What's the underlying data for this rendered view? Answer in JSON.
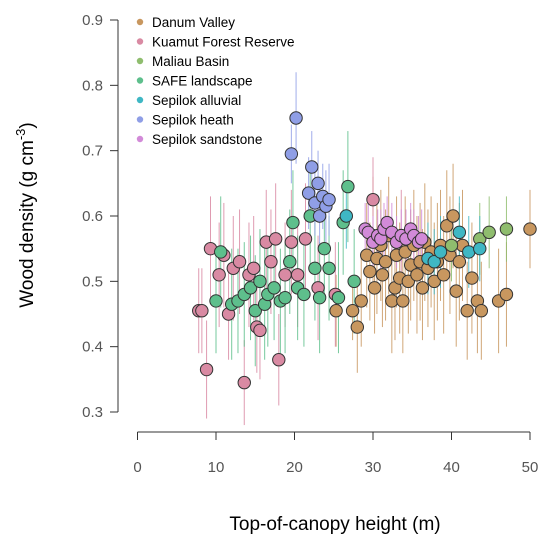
{
  "chart_data": {
    "type": "scatter",
    "title": "",
    "xlabel": "Top-of-canopy height (m)",
    "ylabel_main": "Wood density (g cm",
    "ylabel_sup": "-3",
    "ylabel_close": ")",
    "xlim": [
      0,
      50
    ],
    "ylim": [
      0.3,
      0.9
    ],
    "xticks": [
      0,
      10,
      20,
      30,
      40,
      50
    ],
    "yticks": [
      0.3,
      0.4,
      0.5,
      0.6,
      0.7,
      0.8,
      0.9
    ],
    "grid": false,
    "legend_position": "top-left",
    "series": [
      {
        "name": "Danum Valley",
        "color": "#c8975f",
        "points": [
          [
            25.3,
            0.455,
            0.4,
            0.51
          ],
          [
            27.4,
            0.455,
            0.41,
            0.5
          ],
          [
            28.0,
            0.43,
            0.36,
            0.5
          ],
          [
            28.5,
            0.47,
            0.4,
            0.54
          ],
          [
            29.2,
            0.54,
            0.46,
            0.62
          ],
          [
            29.6,
            0.515,
            0.44,
            0.59
          ],
          [
            30.0,
            0.57,
            0.49,
            0.66
          ],
          [
            30.2,
            0.49,
            0.42,
            0.56
          ],
          [
            30.5,
            0.535,
            0.45,
            0.62
          ],
          [
            31.0,
            0.555,
            0.47,
            0.64
          ],
          [
            31.2,
            0.51,
            0.43,
            0.59
          ],
          [
            31.6,
            0.53,
            0.44,
            0.61
          ],
          [
            32.0,
            0.57,
            0.48,
            0.66
          ],
          [
            32.4,
            0.47,
            0.39,
            0.55
          ],
          [
            32.8,
            0.49,
            0.41,
            0.57
          ],
          [
            33.0,
            0.54,
            0.46,
            0.63
          ],
          [
            33.4,
            0.505,
            0.42,
            0.59
          ],
          [
            33.8,
            0.47,
            0.39,
            0.56
          ],
          [
            34.1,
            0.545,
            0.46,
            0.63
          ],
          [
            34.5,
            0.5,
            0.42,
            0.58
          ],
          [
            34.8,
            0.525,
            0.44,
            0.61
          ],
          [
            35.2,
            0.555,
            0.47,
            0.64
          ],
          [
            35.6,
            0.51,
            0.42,
            0.6
          ],
          [
            36.0,
            0.53,
            0.44,
            0.62
          ],
          [
            36.3,
            0.49,
            0.41,
            0.58
          ],
          [
            36.6,
            0.56,
            0.47,
            0.65
          ],
          [
            37.0,
            0.52,
            0.43,
            0.61
          ],
          [
            37.4,
            0.545,
            0.46,
            0.63
          ],
          [
            37.8,
            0.5,
            0.41,
            0.59
          ],
          [
            38.2,
            0.53,
            0.44,
            0.62
          ],
          [
            38.6,
            0.555,
            0.47,
            0.64
          ],
          [
            39.0,
            0.51,
            0.42,
            0.6
          ],
          [
            39.4,
            0.585,
            0.5,
            0.67
          ],
          [
            39.8,
            0.54,
            0.45,
            0.63
          ],
          [
            40.2,
            0.6,
            0.52,
            0.68
          ],
          [
            40.6,
            0.485,
            0.4,
            0.57
          ],
          [
            41.0,
            0.53,
            0.44,
            0.62
          ],
          [
            41.4,
            0.555,
            0.47,
            0.64
          ],
          [
            42.0,
            0.455,
            0.38,
            0.53
          ],
          [
            42.6,
            0.505,
            0.42,
            0.59
          ],
          [
            43.3,
            0.47,
            0.39,
            0.55
          ],
          [
            43.8,
            0.455,
            0.38,
            0.53
          ],
          [
            46.0,
            0.47,
            0.39,
            0.55
          ],
          [
            47.0,
            0.48,
            0.4,
            0.56
          ],
          [
            50.0,
            0.58,
            0.52,
            0.64
          ]
        ]
      },
      {
        "name": "Kuamut Forest Reserve",
        "color": "#d98aa3",
        "points": [
          [
            7.8,
            0.455,
            0.39,
            0.52
          ],
          [
            8.2,
            0.455,
            0.39,
            0.52
          ],
          [
            8.8,
            0.365,
            0.29,
            0.44
          ],
          [
            9.3,
            0.55,
            0.47,
            0.63
          ],
          [
            10.4,
            0.51,
            0.43,
            0.59
          ],
          [
            11.0,
            0.54,
            0.46,
            0.62
          ],
          [
            11.6,
            0.45,
            0.38,
            0.52
          ],
          [
            12.2,
            0.52,
            0.44,
            0.6
          ],
          [
            13.0,
            0.53,
            0.45,
            0.61
          ],
          [
            13.6,
            0.345,
            0.28,
            0.41
          ],
          [
            14.2,
            0.51,
            0.43,
            0.59
          ],
          [
            14.8,
            0.52,
            0.44,
            0.6
          ],
          [
            15.2,
            0.43,
            0.36,
            0.5
          ],
          [
            15.6,
            0.425,
            0.35,
            0.5
          ],
          [
            16.4,
            0.56,
            0.48,
            0.64
          ],
          [
            17.0,
            0.53,
            0.45,
            0.61
          ],
          [
            17.6,
            0.565,
            0.48,
            0.65
          ],
          [
            18.0,
            0.38,
            0.31,
            0.45
          ],
          [
            18.8,
            0.51,
            0.43,
            0.59
          ],
          [
            19.6,
            0.56,
            0.48,
            0.64
          ],
          [
            20.4,
            0.51,
            0.43,
            0.59
          ],
          [
            21.4,
            0.565,
            0.48,
            0.65
          ],
          [
            23.0,
            0.49,
            0.41,
            0.57
          ],
          [
            25.2,
            0.48,
            0.4,
            0.56
          ],
          [
            30.0,
            0.625,
            0.56,
            0.69
          ],
          [
            33.6,
            0.57,
            0.5,
            0.64
          ]
        ]
      },
      {
        "name": "Maliau Basin",
        "color": "#8fbd6e",
        "points": [
          [
            40.0,
            0.555,
            0.5,
            0.61
          ],
          [
            43.6,
            0.565,
            0.51,
            0.62
          ],
          [
            44.8,
            0.575,
            0.52,
            0.63
          ],
          [
            47.0,
            0.58,
            0.53,
            0.63
          ]
        ]
      },
      {
        "name": "SAFE landscape",
        "color": "#5ebf8c",
        "points": [
          [
            10.0,
            0.47,
            0.39,
            0.55
          ],
          [
            10.6,
            0.545,
            0.46,
            0.63
          ],
          [
            12.0,
            0.465,
            0.38,
            0.55
          ],
          [
            12.8,
            0.47,
            0.39,
            0.55
          ],
          [
            13.6,
            0.48,
            0.4,
            0.56
          ],
          [
            14.4,
            0.49,
            0.41,
            0.57
          ],
          [
            15.0,
            0.455,
            0.37,
            0.54
          ],
          [
            15.6,
            0.5,
            0.42,
            0.58
          ],
          [
            16.2,
            0.465,
            0.38,
            0.55
          ],
          [
            16.6,
            0.48,
            0.4,
            0.56
          ],
          [
            17.4,
            0.49,
            0.41,
            0.57
          ],
          [
            18.2,
            0.47,
            0.39,
            0.55
          ],
          [
            18.8,
            0.475,
            0.39,
            0.56
          ],
          [
            19.4,
            0.53,
            0.45,
            0.61
          ],
          [
            19.8,
            0.59,
            0.51,
            0.67
          ],
          [
            20.4,
            0.49,
            0.41,
            0.57
          ],
          [
            21.2,
            0.48,
            0.4,
            0.56
          ],
          [
            22.0,
            0.6,
            0.52,
            0.68
          ],
          [
            22.6,
            0.52,
            0.44,
            0.6
          ],
          [
            23.2,
            0.475,
            0.39,
            0.56
          ],
          [
            23.8,
            0.55,
            0.47,
            0.63
          ],
          [
            24.4,
            0.52,
            0.44,
            0.6
          ],
          [
            25.6,
            0.475,
            0.39,
            0.56
          ],
          [
            26.2,
            0.59,
            0.51,
            0.67
          ],
          [
            26.8,
            0.645,
            0.56,
            0.73
          ],
          [
            27.6,
            0.5,
            0.42,
            0.58
          ]
        ]
      },
      {
        "name": "Sepilok alluvial",
        "color": "#3fb7c4",
        "points": [
          [
            26.6,
            0.6,
            0.55,
            0.65
          ],
          [
            37.0,
            0.535,
            0.48,
            0.59
          ],
          [
            37.8,
            0.53,
            0.48,
            0.58
          ],
          [
            38.6,
            0.545,
            0.49,
            0.6
          ],
          [
            41.0,
            0.575,
            0.52,
            0.63
          ],
          [
            42.2,
            0.545,
            0.49,
            0.6
          ],
          [
            43.6,
            0.55,
            0.5,
            0.6
          ]
        ]
      },
      {
        "name": "Sepilok heath",
        "color": "#8f9ee6",
        "points": [
          [
            19.6,
            0.695,
            0.65,
            0.74
          ],
          [
            20.2,
            0.75,
            0.68,
            0.82
          ],
          [
            21.8,
            0.635,
            0.58,
            0.69
          ],
          [
            22.2,
            0.675,
            0.62,
            0.73
          ],
          [
            22.6,
            0.62,
            0.57,
            0.67
          ],
          [
            23.0,
            0.65,
            0.6,
            0.7
          ],
          [
            23.2,
            0.6,
            0.55,
            0.65
          ],
          [
            23.6,
            0.63,
            0.58,
            0.68
          ],
          [
            24.0,
            0.615,
            0.56,
            0.67
          ],
          [
            24.4,
            0.625,
            0.57,
            0.68
          ]
        ]
      },
      {
        "name": "Sepilok sandstone",
        "color": "#d28ad8",
        "points": [
          [
            29.0,
            0.58,
            0.54,
            0.62
          ],
          [
            29.4,
            0.575,
            0.53,
            0.62
          ],
          [
            30.0,
            0.56,
            0.52,
            0.6
          ],
          [
            30.6,
            0.57,
            0.53,
            0.61
          ],
          [
            31.0,
            0.565,
            0.52,
            0.61
          ],
          [
            31.4,
            0.58,
            0.54,
            0.62
          ],
          [
            31.8,
            0.59,
            0.55,
            0.63
          ],
          [
            32.4,
            0.575,
            0.53,
            0.62
          ],
          [
            33.0,
            0.56,
            0.52,
            0.6
          ],
          [
            33.6,
            0.57,
            0.53,
            0.61
          ],
          [
            34.2,
            0.565,
            0.52,
            0.61
          ],
          [
            34.8,
            0.58,
            0.54,
            0.62
          ],
          [
            35.2,
            0.57,
            0.53,
            0.61
          ],
          [
            35.8,
            0.56,
            0.52,
            0.6
          ],
          [
            36.2,
            0.565,
            0.52,
            0.61
          ]
        ]
      }
    ]
  }
}
